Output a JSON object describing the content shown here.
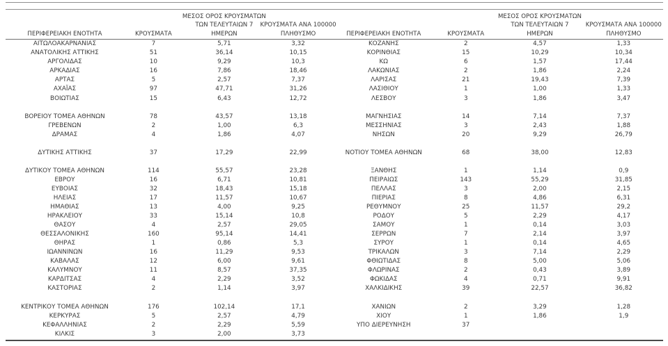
{
  "report": {
    "columns": {
      "region": "ΠΕΡΙΦΕΡΕΙΑΚΗ ΕΝΟΤΗΤΑ",
      "cases": "ΚΡΟΥΣΜΑΤΑ",
      "avg7_line1": "ΜΕΣΟΣ ΟΡΟΣ ΚΡΟΥΣΜΑΤΩΝ",
      "avg7_line2": "ΤΩΝ ΤΕΛΕΥΤΑΙΩΝ 7",
      "avg7_line3": "ΗΜΕΡΩΝ",
      "per100k_line1": "ΚΡΟΥΣΜΑΤΑ ΑΝΑ 100000",
      "per100k_line2": "ΠΛΗΘΥΣΜΟ"
    },
    "colors": {
      "text": "#3a3a3a",
      "thin_line": "#8f8f8f",
      "header_underline": "#6e6e6e",
      "thick_bottom_line": "#4a4a4a"
    },
    "left_rows": [
      [
        "ΑΙΤΩΛΟΑΚΑΡΝΑΝΙΑΣ",
        "7",
        "5,71",
        "3,32"
      ],
      [
        "ΑΝΑΤΟΛΙΚΗΣ ΑΤΤΙΚΗΣ",
        "51",
        "36,14",
        "10,15"
      ],
      [
        "ΑΡΓΟΛΙΔΑΣ",
        "10",
        "9,29",
        "10,3"
      ],
      [
        "ΑΡΚΑΔΙΑΣ",
        "16",
        "7,86",
        "18,46"
      ],
      [
        "ΑΡΤΑΣ",
        "5",
        "2,57",
        "7,37"
      ],
      [
        "ΑΧΑΪΑΣ",
        "97",
        "47,71",
        "31,26"
      ],
      [
        "ΒΟΙΩΤΙΑΣ",
        "15",
        "6,43",
        "12,72"
      ],
      [
        "",
        "",
        "",
        ""
      ],
      [
        "ΒΟΡΕΙΟΥ ΤΟΜΕΑ ΑΘΗΝΩΝ",
        "78",
        "43,57",
        "13,18"
      ],
      [
        "ΓΡΕΒΕΝΩΝ",
        "2",
        "1,00",
        "6,3"
      ],
      [
        "ΔΡΑΜΑΣ",
        "4",
        "1,86",
        "4,07"
      ],
      [
        "",
        "",
        "",
        ""
      ],
      [
        "ΔΥΤΙΚΗΣ ΑΤΤΙΚΗΣ",
        "37",
        "17,29",
        "22,99"
      ],
      [
        "",
        "",
        "",
        ""
      ],
      [
        "ΔΥΤΙΚΟΥ ΤΟΜΕΑ ΑΘΗΝΩΝ",
        "114",
        "55,57",
        "23,28"
      ],
      [
        "ΕΒΡΟΥ",
        "16",
        "6,71",
        "10,81"
      ],
      [
        "ΕΥΒΟΙΑΣ",
        "32",
        "18,43",
        "15,18"
      ],
      [
        "ΗΛΕΙΑΣ",
        "17",
        "11,57",
        "10,67"
      ],
      [
        "ΗΜΑΘΙΑΣ",
        "13",
        "4,00",
        "9,25"
      ],
      [
        "ΗΡΑΚΛΕΙΟΥ",
        "33",
        "15,14",
        "10,8"
      ],
      [
        "ΘΑΣΟΥ",
        "4",
        "2,57",
        "29,05"
      ],
      [
        "ΘΕΣΣΑΛΟΝΙΚΗΣ",
        "160",
        "95,14",
        "14,41"
      ],
      [
        "ΘΗΡΑΣ",
        "1",
        "0,86",
        "5,3"
      ],
      [
        "ΙΩΑΝΝΙΝΩΝ",
        "16",
        "11,29",
        "9,53"
      ],
      [
        "ΚΑΒΑΛΑΣ",
        "12",
        "6,00",
        "9,61"
      ],
      [
        "ΚΑΛΥΜΝΟΥ",
        "11",
        "8,57",
        "37,35"
      ],
      [
        "ΚΑΡΔΙΤΣΑΣ",
        "4",
        "2,29",
        "3,52"
      ],
      [
        "ΚΑΣΤΟΡΙΑΣ",
        "2",
        "1,14",
        "3,97"
      ],
      [
        "",
        "",
        "",
        ""
      ],
      [
        "ΚΕΝΤΡΙΚΟΥ ΤΟΜΕΑ ΑΘΗΝΩΝ",
        "176",
        "102,14",
        "17,1"
      ],
      [
        "ΚΕΡΚΥΡΑΣ",
        "5",
        "2,57",
        "4,79"
      ],
      [
        "ΚΕΦΑΛΛΗΝΙΑΣ",
        "2",
        "2,29",
        "5,59"
      ],
      [
        "ΚΙΛΚΙΣ",
        "3",
        "2,00",
        "3,73"
      ]
    ],
    "right_rows": [
      [
        "ΚΟΖΑΝΗΣ",
        "2",
        "4,57",
        "1,33"
      ],
      [
        "ΚΟΡΙΝΘΙΑΣ",
        "15",
        "10,29",
        "10,34"
      ],
      [
        "ΚΩ",
        "6",
        "1,57",
        "17,44"
      ],
      [
        "ΛΑΚΩΝΙΑΣ",
        "2",
        "1,86",
        "2,24"
      ],
      [
        "ΛΑΡΙΣΑΣ",
        "21",
        "19,43",
        "7,39"
      ],
      [
        "ΛΑΣΙΘΙΟΥ",
        "1",
        "1,00",
        "1,33"
      ],
      [
        "ΛΕΣΒΟΥ",
        "3",
        "1,86",
        "3,47"
      ],
      [
        "",
        "",
        "",
        ""
      ],
      [
        "ΜΑΓΝΗΣΙΑΣ",
        "14",
        "7,14",
        "7,37"
      ],
      [
        "ΜΕΣΣΗΝΙΑΣ",
        "3",
        "2,43",
        "1,88"
      ],
      [
        "ΝΗΣΩΝ",
        "20",
        "9,29",
        "26,79"
      ],
      [
        "",
        "",
        "",
        ""
      ],
      [
        "ΝΟΤΙΟΥ ΤΟΜΕΑ ΑΘΗΝΩΝ",
        "68",
        "38,00",
        "12,83"
      ],
      [
        "",
        "",
        "",
        ""
      ],
      [
        "ΞΑΝΘΗΣ",
        "1",
        "1,14",
        "0,9"
      ],
      [
        "ΠΕΙΡΑΙΩΣ",
        "143",
        "55,29",
        "31,85"
      ],
      [
        "ΠΕΛΛΑΣ",
        "3",
        "2,00",
        "2,15"
      ],
      [
        "ΠΙΕΡΙΑΣ",
        "8",
        "4,86",
        "6,31"
      ],
      [
        "ΡΕΘΥΜΝΟΥ",
        "25",
        "11,57",
        "29,2"
      ],
      [
        "ΡΟΔΟΥ",
        "5",
        "2,29",
        "4,17"
      ],
      [
        "ΣΑΜΟΥ",
        "1",
        "0,14",
        "3,03"
      ],
      [
        "ΣΕΡΡΩΝ",
        "7",
        "2,14",
        "3,97"
      ],
      [
        "ΣΥΡΟΥ",
        "1",
        "0,14",
        "4,65"
      ],
      [
        "ΤΡΙΚΑΛΩΝ",
        "3",
        "7,14",
        "2,29"
      ],
      [
        "ΦΘΙΩΤΙΔΑΣ",
        "8",
        "5,00",
        "5,06"
      ],
      [
        "ΦΛΩΡΙΝΑΣ",
        "2",
        "0,43",
        "3,89"
      ],
      [
        "ΦΩΚΙΔΑΣ",
        "4",
        "0,71",
        "9,91"
      ],
      [
        "ΧΑΛΚΙΔΙΚΗΣ",
        "39",
        "22,57",
        "36,82"
      ],
      [
        "",
        "",
        "",
        ""
      ],
      [
        "ΧΑΝΙΩΝ",
        "2",
        "3,29",
        "1,28"
      ],
      [
        "ΧΙΟΥ",
        "1",
        "1,86",
        "1,9"
      ],
      [
        "ΥΠΟ ΔΙΕΡΕΥΝΗΣΗ",
        "37",
        "",
        ""
      ],
      [
        "",
        "",
        "",
        ""
      ]
    ]
  }
}
